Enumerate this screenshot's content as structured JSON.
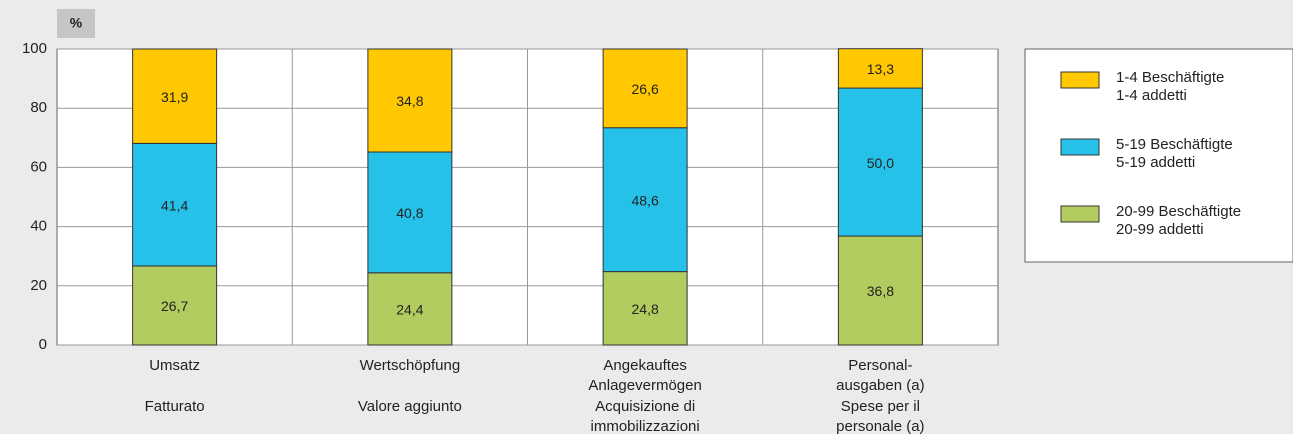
{
  "chart_data": {
    "type": "stacked_bar",
    "unit_label": "%",
    "categories": [
      {
        "de": [
          "Umsatz"
        ],
        "it": [
          "Fatturato"
        ]
      },
      {
        "de": [
          "Wertschöpfung"
        ],
        "it": [
          "Valore aggiunto"
        ]
      },
      {
        "de": [
          "Angekauftes",
          "Anlagevermögen"
        ],
        "it": [
          "Acquisizione di",
          "immobilizzazioni"
        ]
      },
      {
        "de": [
          "Personal-",
          "ausgaben (a)"
        ],
        "it": [
          "Spese per il",
          "personale (a)"
        ]
      }
    ],
    "series": [
      {
        "name": "20-99 Beschäftigte",
        "name_it": "20-99 addetti",
        "color": "#b3cc60",
        "values": [
          26.7,
          24.4,
          24.8,
          36.8
        ],
        "value_labels": [
          "26,7",
          "24,4",
          "24,8",
          "36,8"
        ]
      },
      {
        "name": "5-19 Beschäftigte",
        "name_it": "5-19 addetti",
        "color": "#26c1e8",
        "values": [
          41.4,
          40.8,
          48.6,
          50.0
        ],
        "value_labels": [
          "41,4",
          "40,8",
          "48,6",
          "50,0"
        ]
      },
      {
        "name": "1-4 Beschäftigte",
        "name_it": "1-4 addetti",
        "color": "#ffc800",
        "values": [
          31.9,
          34.8,
          26.6,
          13.3
        ],
        "value_labels": [
          "31,9",
          "34,8",
          "26,6",
          "13,3"
        ]
      }
    ],
    "ylim": [
      0,
      100
    ],
    "yticks": [
      0,
      20,
      40,
      60,
      80,
      100
    ],
    "grid": true
  }
}
